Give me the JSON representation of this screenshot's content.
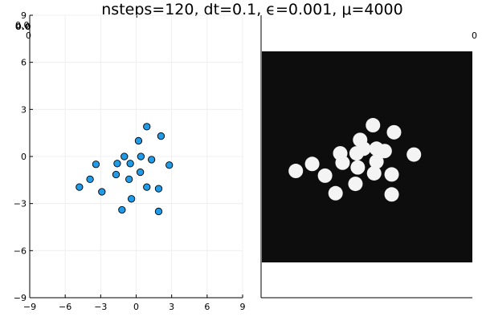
{
  "chart_data": [
    {
      "type": "scatter",
      "title": "nsteps=120, dt=0.1, ϵ=0.001, μ=4000",
      "xlim": [
        -9,
        9
      ],
      "ylim": [
        -9,
        9
      ],
      "xticks": [
        -9,
        -6,
        -3,
        0,
        3,
        6,
        9
      ],
      "yticks": [
        -9,
        -6,
        -3,
        0,
        3,
        6,
        9
      ],
      "xtick_labels": [
        "−9",
        "−6",
        "−3",
        "0",
        "3",
        "6",
        "9"
      ],
      "ytick_labels": [
        "−9",
        "−6",
        "−3",
        "0",
        "3",
        "6",
        "9"
      ],
      "grid": true,
      "marker_color": "#1f9be8",
      "series": [
        {
          "points": [
            {
              "x": 0.9,
              "y": 1.9
            },
            {
              "x": 2.1,
              "y": 1.3
            },
            {
              "x": 0.2,
              "y": 1.0
            },
            {
              "x": -1.0,
              "y": 0.0
            },
            {
              "x": 0.4,
              "y": 0.0
            },
            {
              "x": 1.3,
              "y": -0.2
            },
            {
              "x": -3.4,
              "y": -0.5
            },
            {
              "x": -1.6,
              "y": -0.45
            },
            {
              "x": -0.5,
              "y": -0.45
            },
            {
              "x": 2.8,
              "y": -0.55
            },
            {
              "x": -1.7,
              "y": -1.15
            },
            {
              "x": 0.35,
              "y": -1.0
            },
            {
              "x": -3.9,
              "y": -1.45
            },
            {
              "x": -0.6,
              "y": -1.45
            },
            {
              "x": -4.8,
              "y": -1.95
            },
            {
              "x": 0.9,
              "y": -1.95
            },
            {
              "x": 1.9,
              "y": -2.05
            },
            {
              "x": -2.9,
              "y": -2.25
            },
            {
              "x": -0.4,
              "y": -2.7
            },
            {
              "x": -1.2,
              "y": -3.4
            },
            {
              "x": 1.9,
              "y": -3.5
            }
          ]
        }
      ]
    },
    {
      "type": "heatmap",
      "xlim": [
        -9,
        9
      ],
      "ylim": [
        -9,
        9
      ],
      "visible_partial_tick_labels": [
        "0.0",
        "0",
        "0"
      ],
      "colors": {
        "background": "#0d0d0d",
        "blob": "#f4f4f4"
      },
      "blobs": [
        {
          "x": 0.5,
          "y": 2.7
        },
        {
          "x": 2.3,
          "y": 2.1
        },
        {
          "x": -0.6,
          "y": 1.45
        },
        {
          "x": -2.3,
          "y": 0.3
        },
        {
          "x": -0.9,
          "y": 0.3
        },
        {
          "x": -0.3,
          "y": 0.7
        },
        {
          "x": 0.8,
          "y": 0.7
        },
        {
          "x": 1.5,
          "y": 0.5
        },
        {
          "x": 4.0,
          "y": 0.2
        },
        {
          "x": -6.1,
          "y": -1.2
        },
        {
          "x": -4.7,
          "y": -0.6
        },
        {
          "x": -2.1,
          "y": -0.5
        },
        {
          "x": -0.8,
          "y": -0.9
        },
        {
          "x": 0.8,
          "y": -0.4
        },
        {
          "x": -3.6,
          "y": -1.6
        },
        {
          "x": 0.6,
          "y": -1.4
        },
        {
          "x": 2.1,
          "y": -1.5
        },
        {
          "x": -1.0,
          "y": -2.3
        },
        {
          "x": -2.7,
          "y": -3.1
        },
        {
          "x": 2.1,
          "y": -3.2
        }
      ]
    }
  ]
}
